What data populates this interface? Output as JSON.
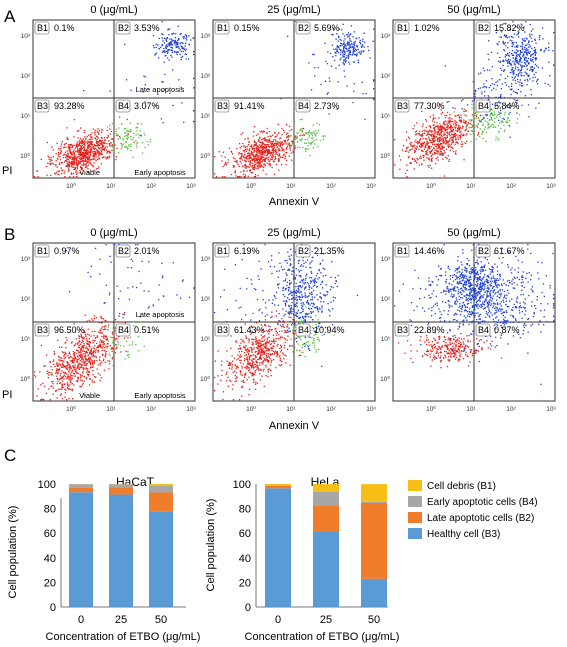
{
  "panels": {
    "A": {
      "letter": "A",
      "plots": [
        {
          "conc_label": "0 (μg/mL)",
          "quadrants": {
            "B1": "0.1%",
            "B2": "3.53%",
            "B3": "93.28%",
            "B4": "3.07%"
          },
          "notes": {
            "late": "Late apoptosis",
            "viable": "Viable",
            "early": "Early apoptosis"
          }
        },
        {
          "conc_label": "25 (μg/mL)",
          "quadrants": {
            "B1": "0.15%",
            "B2": "5.69%",
            "B3": "91.41%",
            "B4": "2.73%"
          }
        },
        {
          "conc_label": "50 (μg/mL)",
          "quadrants": {
            "B1": "1.02%",
            "B2": "15.82%",
            "B3": "77.30%",
            "B4": "5.84%"
          }
        }
      ],
      "y_axis_label": "PI",
      "x_axis_label": "Annexin V"
    },
    "B": {
      "letter": "B",
      "plots": [
        {
          "conc_label": "0 (μg/mL)",
          "quadrants": {
            "B1": "0.97%",
            "B2": "2.01%",
            "B3": "96.50%",
            "B4": "0.51%"
          },
          "notes": {
            "late": "Late apoptosis",
            "viable": "Viable",
            "early": "Early apoptosis"
          }
        },
        {
          "conc_label": "25 (μg/mL)",
          "quadrants": {
            "B1": "6.19%",
            "B2": "21.35%",
            "B3": "61.43%",
            "B4": "10.94%"
          }
        },
        {
          "conc_label": "50 (μg/mL)",
          "quadrants": {
            "B1": "14.46%",
            "B2": "61.67%",
            "B3": "22.89%",
            "B4": "0.87%"
          }
        }
      ],
      "y_axis_label": "PI",
      "x_axis_label": "Annexin V"
    },
    "C": {
      "letter": "C"
    }
  },
  "flow_ticks": {
    "x": [
      "10⁰",
      "10¹",
      "10²",
      "10³"
    ],
    "y": [
      "10³",
      "10²",
      "10¹",
      "10⁰"
    ]
  },
  "colors": {
    "viable": "#e8201a",
    "early": "#55c03c",
    "late": "#1f3fd6",
    "cell_debris": "#f7be15",
    "early_apoptotic": "#a7a7a7",
    "late_apoptotic": "#ef7d2c",
    "healthy": "#5b9bd5"
  },
  "chart_data": [
    {
      "type": "bar",
      "stacked": true,
      "title": "HaCaT",
      "xlabel": "Concentration of ETBO (μg/mL)",
      "ylabel": "Cell population (%)",
      "ylim": [
        0,
        100
      ],
      "yticks": [
        "0",
        "20",
        "40",
        "60",
        "80",
        "100"
      ],
      "categories": [
        "0",
        "25",
        "50"
      ],
      "series": [
        {
          "name": "Healthy cell (B3)",
          "values": [
            93.28,
            91.41,
            77.3
          ]
        },
        {
          "name": "Late apoptotic cells (B2)",
          "values": [
            3.53,
            5.69,
            15.82
          ]
        },
        {
          "name": "Early apoptotic cells (B4)",
          "values": [
            3.07,
            2.73,
            5.84
          ]
        },
        {
          "name": "Cell debris (B1)",
          "values": [
            0.1,
            0.15,
            1.02
          ]
        }
      ]
    },
    {
      "type": "bar",
      "stacked": true,
      "title": "HeLa",
      "xlabel": "Concentration of ETBO (μg/mL)",
      "ylabel": "Cell population (%)",
      "ylim": [
        0,
        100
      ],
      "yticks": [
        "0",
        "20",
        "40",
        "60",
        "80",
        "100"
      ],
      "categories": [
        "0",
        "25",
        "50"
      ],
      "series": [
        {
          "name": "Healthy cell (B3)",
          "values": [
            96.5,
            61.43,
            22.89
          ]
        },
        {
          "name": "Late apoptotic cells (B2)",
          "values": [
            2.01,
            21.35,
            61.67
          ]
        },
        {
          "name": "Early apoptotic cells (B4)",
          "values": [
            0.51,
            10.94,
            0.87
          ]
        },
        {
          "name": "Cell debris (B1)",
          "values": [
            0.97,
            6.19,
            14.46
          ]
        }
      ]
    }
  ],
  "legend": [
    {
      "label": "Cell debris (B1)",
      "color": "#f7be15"
    },
    {
      "label": "Early apoptotic cells (B4)",
      "color": "#a7a7a7"
    },
    {
      "label": "Late apoptotic cells (B2)",
      "color": "#ef7d2c"
    },
    {
      "label": "Healthy cell (B3)",
      "color": "#5b9bd5"
    }
  ]
}
